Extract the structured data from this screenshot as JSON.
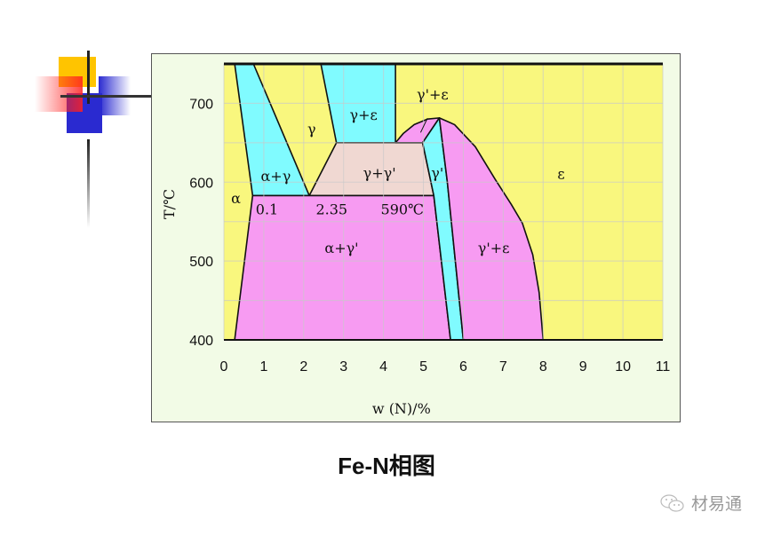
{
  "caption": "Fe-N相图",
  "watermark": {
    "icon": "wechat-icon",
    "text": "材易通"
  },
  "colors": {
    "yellow": "#f9f77e",
    "cyan": "#80fbff",
    "pink": "#f79bf2",
    "beige": "#f0d8d2",
    "grid": "#c9c9c9"
  },
  "chart_data": {
    "type": "phase-diagram",
    "xlabel": "w (N)/%",
    "ylabel": "T/℃",
    "xlim": [
      0,
      11
    ],
    "ylim": [
      400,
      750
    ],
    "x_ticks": [
      "0",
      "1",
      "2",
      "3",
      "4",
      "5",
      "6",
      "7",
      "8",
      "9",
      "10",
      "11"
    ],
    "y_ticks": [
      "400",
      "500",
      "600",
      "700"
    ],
    "grid": true,
    "regions": [
      {
        "phase": "α+γ",
        "color": "cyan",
        "points": [
          [
            0.27,
            750
          ],
          [
            0.74,
            750
          ],
          [
            2.14,
            583
          ],
          [
            0.72,
            583
          ]
        ]
      },
      {
        "phase": "γ+ε",
        "color": "cyan",
        "points": [
          [
            2.43,
            750
          ],
          [
            4.3,
            750
          ],
          [
            4.3,
            650
          ],
          [
            2.82,
            650
          ]
        ]
      },
      {
        "phase": "γ+γ'",
        "color": "beige",
        "points": [
          [
            2.82,
            650
          ],
          [
            4.98,
            650
          ],
          [
            5.26,
            583
          ],
          [
            2.14,
            583
          ]
        ]
      },
      {
        "phase": "α+γ'",
        "color": "pink",
        "points": [
          [
            0.72,
            583
          ],
          [
            5.26,
            583
          ],
          [
            5.68,
            400
          ],
          [
            0.27,
            400
          ]
        ]
      },
      {
        "phase": "γ'+ε",
        "color": "pink",
        "points": [
          [
            4.3,
            650
          ],
          [
            4.5,
            662
          ],
          [
            4.77,
            673
          ],
          [
            5.1,
            680
          ],
          [
            5.4,
            681.5
          ],
          [
            4.98,
            650
          ]
        ]
      },
      {
        "phase": "γ'",
        "color": "cyan",
        "points": [
          [
            4.98,
            650
          ],
          [
            5.4,
            681.5
          ],
          [
            5.6,
            600
          ],
          [
            5.8,
            500
          ],
          [
            6.0,
            400
          ],
          [
            5.68,
            400
          ],
          [
            5.26,
            583
          ]
        ]
      },
      {
        "phase": "γ'+ε",
        "color": "pink",
        "points": [
          [
            5.4,
            681.5
          ],
          [
            5.78,
            673
          ],
          [
            6.3,
            645
          ],
          [
            6.8,
            603.5
          ],
          [
            7.2,
            572
          ],
          [
            7.48,
            548
          ],
          [
            7.74,
            508
          ],
          [
            7.9,
            460
          ],
          [
            8.0,
            400
          ],
          [
            6.0,
            400
          ],
          [
            5.8,
            500
          ],
          [
            5.6,
            600
          ]
        ]
      }
    ],
    "annotations": [
      "α",
      "α+γ",
      "γ",
      "γ+ε",
      "γ'+ε",
      "γ+γ'",
      "γ'",
      "ε",
      "0.1",
      "2.35",
      "590℃",
      "α+γ'",
      "γ'+ε"
    ]
  }
}
